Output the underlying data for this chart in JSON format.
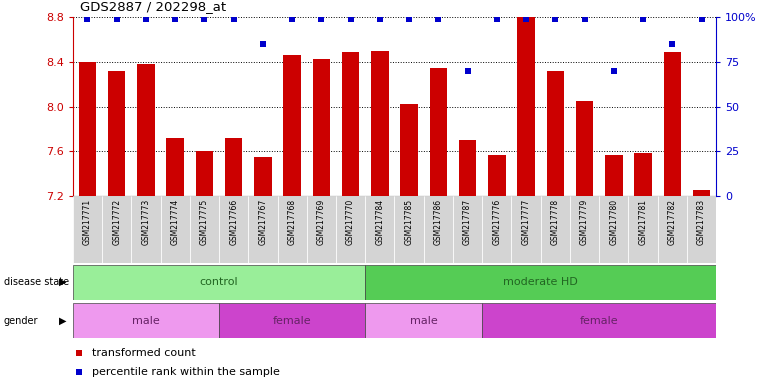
{
  "title": "GDS2887 / 202298_at",
  "samples": [
    "GSM217771",
    "GSM217772",
    "GSM217773",
    "GSM217774",
    "GSM217775",
    "GSM217766",
    "GSM217767",
    "GSM217768",
    "GSM217769",
    "GSM217770",
    "GSM217784",
    "GSM217785",
    "GSM217786",
    "GSM217787",
    "GSM217776",
    "GSM217777",
    "GSM217778",
    "GSM217779",
    "GSM217780",
    "GSM217781",
    "GSM217782",
    "GSM217783"
  ],
  "values": [
    8.4,
    8.32,
    8.38,
    7.72,
    7.6,
    7.72,
    7.55,
    8.46,
    8.43,
    8.49,
    8.5,
    8.02,
    8.35,
    7.7,
    7.57,
    8.82,
    8.32,
    8.05,
    7.57,
    7.58,
    8.49,
    7.25
  ],
  "percentile": [
    99,
    99,
    99,
    99,
    99,
    99,
    85,
    99,
    99,
    99,
    99,
    99,
    99,
    70,
    99,
    99,
    99,
    99,
    70,
    99,
    85,
    99
  ],
  "bar_color": "#cc0000",
  "dot_color": "#0000cc",
  "ymin": 7.2,
  "ymax": 8.8,
  "yticks": [
    7.2,
    7.6,
    8.0,
    8.4,
    8.8
  ],
  "right_yticks": [
    0,
    25,
    50,
    75,
    100
  ],
  "right_ylabels": [
    "0",
    "25",
    "50",
    "75",
    "100%"
  ],
  "grid_values": [
    7.6,
    8.0,
    8.4,
    8.8
  ],
  "disease_state_groups": [
    {
      "label": "control",
      "start": 0,
      "end": 10,
      "color": "#99ee99"
    },
    {
      "label": "moderate HD",
      "start": 10,
      "end": 22,
      "color": "#55cc55"
    }
  ],
  "gender_groups": [
    {
      "label": "male",
      "start": 0,
      "end": 5,
      "color": "#ee99ee"
    },
    {
      "label": "female",
      "start": 5,
      "end": 10,
      "color": "#cc44cc"
    },
    {
      "label": "male",
      "start": 10,
      "end": 14,
      "color": "#ee99ee"
    },
    {
      "label": "female",
      "start": 14,
      "end": 22,
      "color": "#cc44cc"
    }
  ]
}
